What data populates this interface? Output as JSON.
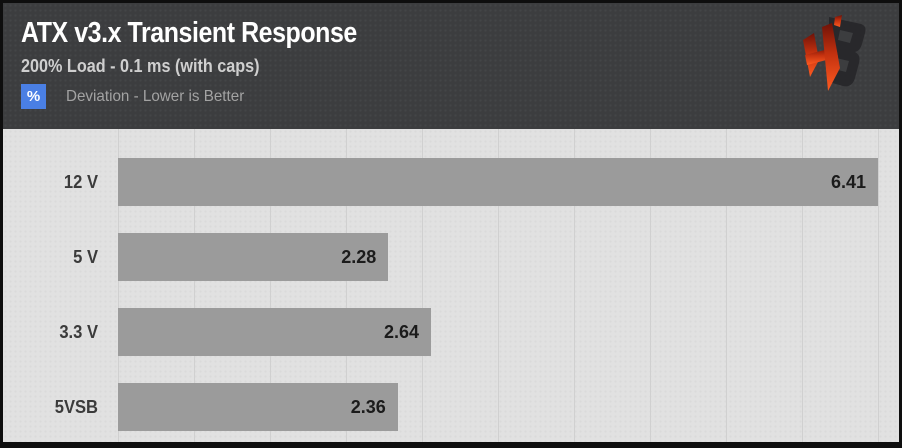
{
  "header": {
    "title": "ATX v3.x Transient Response",
    "subtitle": "200% Load - 0.1 ms (with caps)",
    "legend_badge": "%",
    "legend_text": "Deviation - Lower is Better",
    "logo": "hardware-busters-logo"
  },
  "colors": {
    "frame": "#0e0e0e",
    "header_bg": "#3c3d3f",
    "chart_bg": "#e1e1e1",
    "gridline": "#d0d0d0",
    "bar": "#9b9b9b",
    "badge_blue": "#4a7fe4",
    "logo_red_top": "#6e1208",
    "logo_red_mid": "#c3310f",
    "logo_red_bottom": "#ff5b21",
    "logo_dark": "#28282b"
  },
  "chart_data": {
    "type": "bar",
    "orientation": "horizontal",
    "title": "ATX v3.x Transient Response",
    "subtitle": "200% Load - 0.1 ms (with caps)",
    "unit": "%",
    "note": "Deviation - Lower is Better",
    "categories": [
      "12 V",
      "5 V",
      "3.3 V",
      "5VSB"
    ],
    "values": [
      6.41,
      2.28,
      2.64,
      2.36
    ],
    "value_labels": [
      "6.41",
      "2.28",
      "2.64",
      "2.36"
    ],
    "xlabel": "",
    "ylabel": "",
    "xlim": [
      0,
      6.41
    ],
    "grid": true,
    "gridline_count": 11,
    "legend_position": "header-top-left",
    "value_label_position": "inside-bar-end"
  }
}
